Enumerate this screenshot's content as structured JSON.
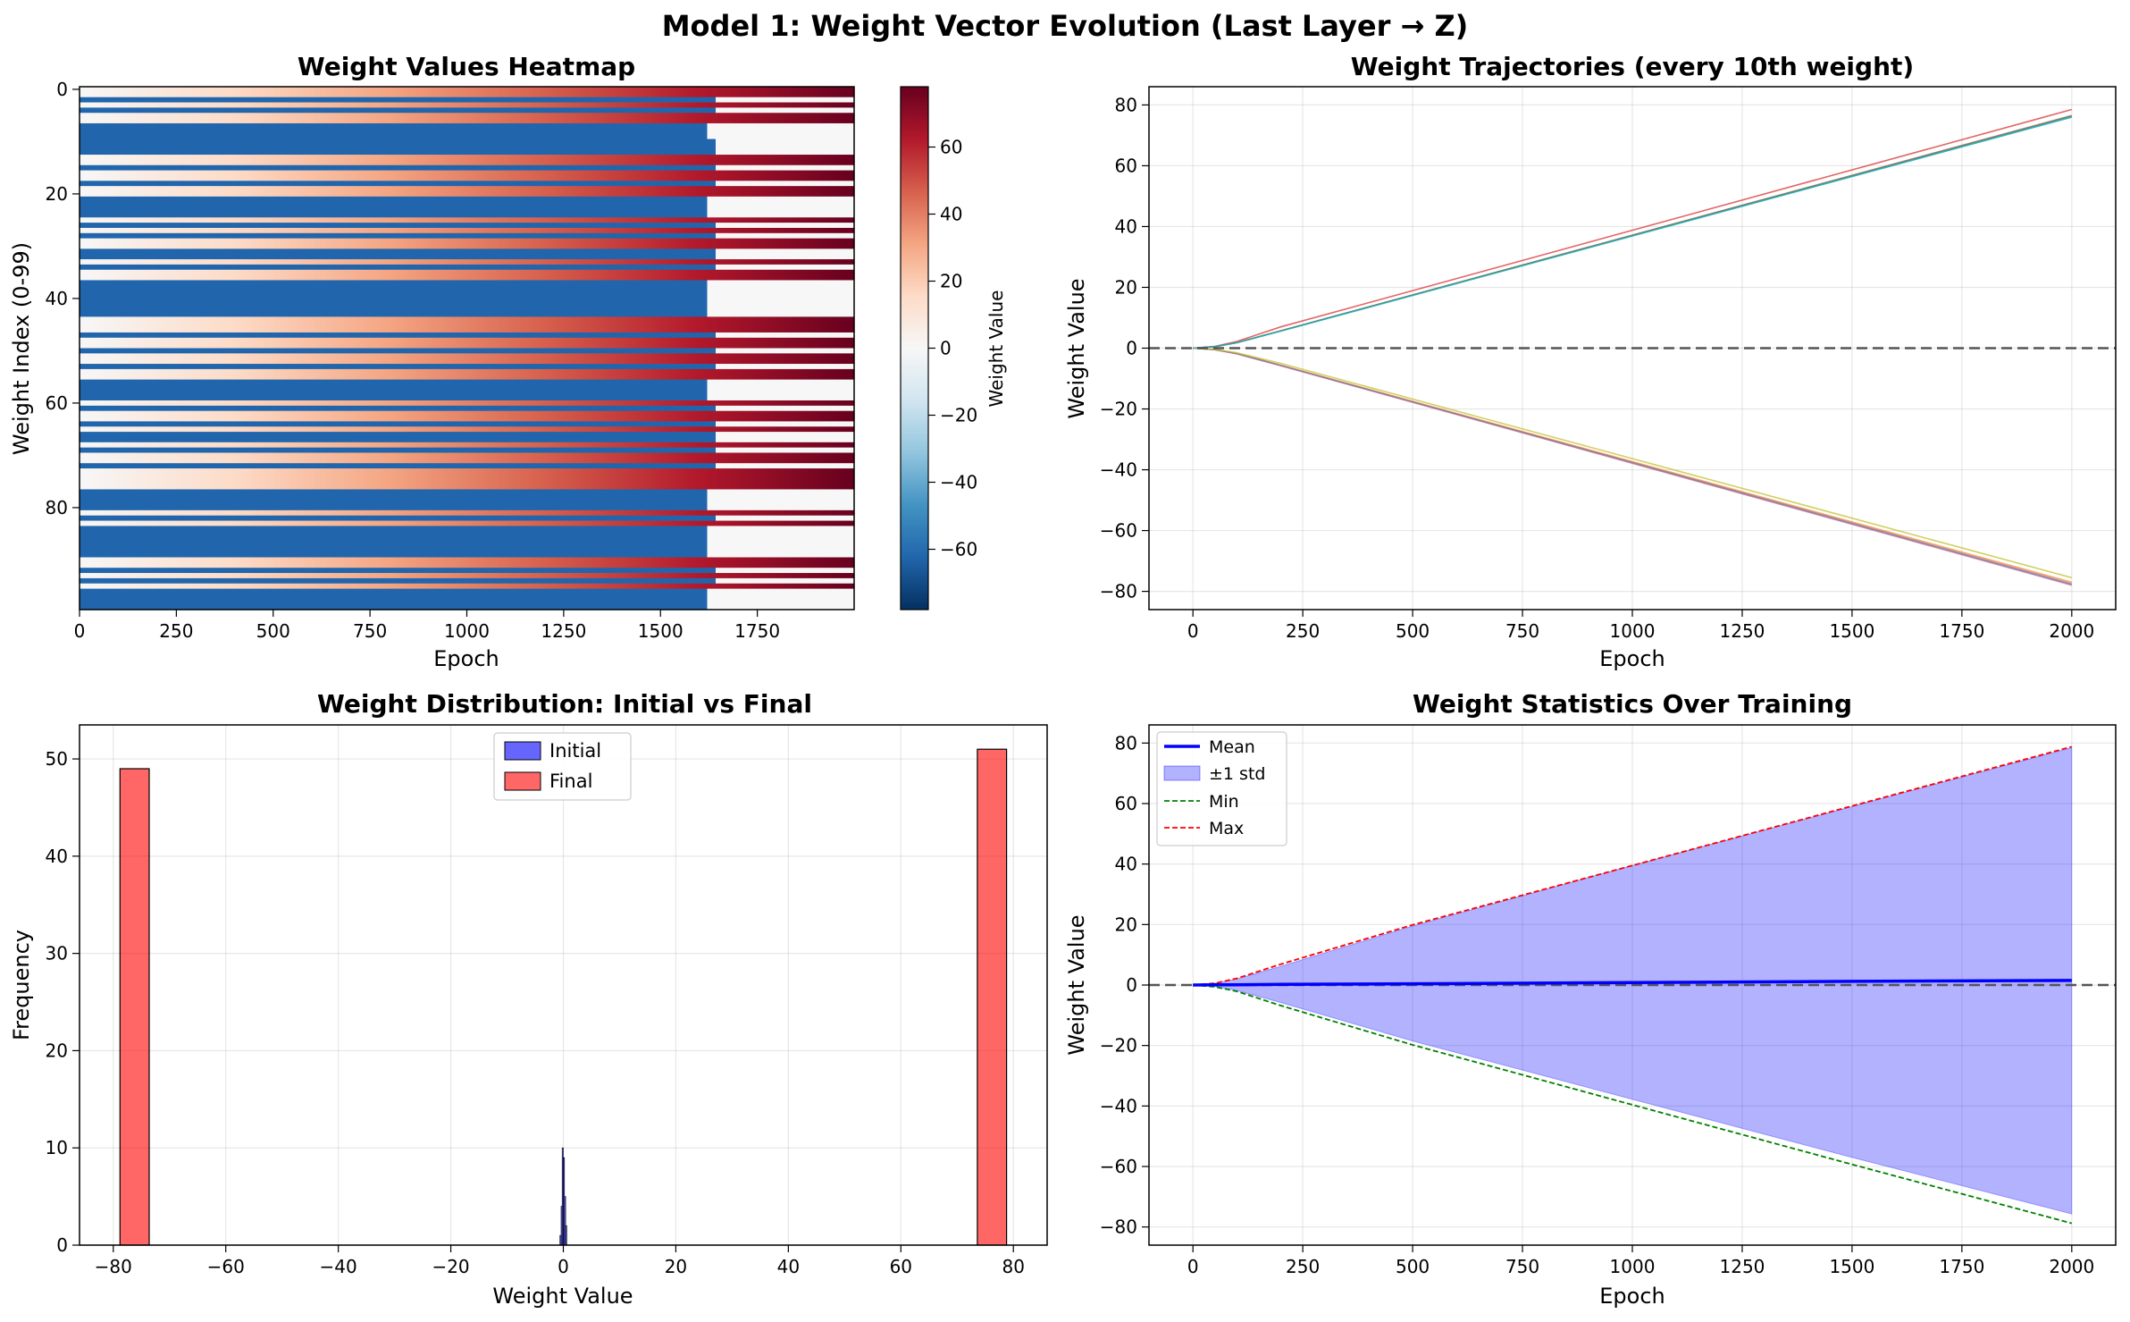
{
  "figure": {
    "suptitle": "Model 1: Weight Vector Evolution (Last Layer → Z)"
  },
  "chart_data": [
    {
      "type": "heatmap",
      "title": "Weight Values Heatmap",
      "xlabel": "Epoch",
      "ylabel": "Weight Index (0-99)",
      "xlim": [
        0,
        2000
      ],
      "ylim": [
        99.5,
        -0.5
      ],
      "x_ticks": [
        0,
        250,
        500,
        750,
        1000,
        1250,
        1500,
        1750
      ],
      "y_ticks": [
        0,
        20,
        40,
        60,
        80
      ],
      "colormap": "RdBu_r",
      "colorbar": {
        "label": "Weight Value",
        "range": [
          -78,
          78
        ],
        "ticks": [
          -60,
          -40,
          -20,
          0,
          20,
          40,
          60
        ]
      },
      "rows": 100,
      "final_values_by_index_range": [
        {
          "from": 0,
          "to": 1,
          "final": 78
        },
        {
          "from": 2,
          "to": 2,
          "final": -76
        },
        {
          "from": 3,
          "to": 3,
          "final": 78
        },
        {
          "from": 4,
          "to": 4,
          "final": -76
        },
        {
          "from": 5,
          "to": 6,
          "final": 78
        },
        {
          "from": 7,
          "to": 9,
          "final": -77
        },
        {
          "from": 10,
          "to": 12,
          "final": -76
        },
        {
          "from": 13,
          "to": 14,
          "final": 78
        },
        {
          "from": 15,
          "to": 15,
          "final": -76
        },
        {
          "from": 16,
          "to": 17,
          "final": 78
        },
        {
          "from": 18,
          "to": 18,
          "final": -76
        },
        {
          "from": 19,
          "to": 20,
          "final": 78
        },
        {
          "from": 21,
          "to": 24,
          "final": -77
        },
        {
          "from": 25,
          "to": 25,
          "final": 78
        },
        {
          "from": 26,
          "to": 26,
          "final": -76
        },
        {
          "from": 27,
          "to": 27,
          "final": 78
        },
        {
          "from": 28,
          "to": 28,
          "final": -76
        },
        {
          "from": 29,
          "to": 30,
          "final": 78
        },
        {
          "from": 31,
          "to": 32,
          "final": -76
        },
        {
          "from": 33,
          "to": 33,
          "final": 78
        },
        {
          "from": 34,
          "to": 34,
          "final": -76
        },
        {
          "from": 35,
          "to": 36,
          "final": 78
        },
        {
          "from": 37,
          "to": 43,
          "final": -77
        },
        {
          "from": 44,
          "to": 46,
          "final": 78
        },
        {
          "from": 47,
          "to": 47,
          "final": -76
        },
        {
          "from": 48,
          "to": 49,
          "final": 78
        },
        {
          "from": 50,
          "to": 50,
          "final": -76
        },
        {
          "from": 51,
          "to": 52,
          "final": 78
        },
        {
          "from": 53,
          "to": 53,
          "final": -76
        },
        {
          "from": 54,
          "to": 55,
          "final": 78
        },
        {
          "from": 56,
          "to": 59,
          "final": -77
        },
        {
          "from": 60,
          "to": 60,
          "final": 78
        },
        {
          "from": 61,
          "to": 61,
          "final": -76
        },
        {
          "from": 62,
          "to": 63,
          "final": 78
        },
        {
          "from": 64,
          "to": 64,
          "final": -76
        },
        {
          "from": 65,
          "to": 65,
          "final": 78
        },
        {
          "from": 66,
          "to": 67,
          "final": -76
        },
        {
          "from": 68,
          "to": 68,
          "final": 78
        },
        {
          "from": 69,
          "to": 69,
          "final": -76
        },
        {
          "from": 70,
          "to": 71,
          "final": 78
        },
        {
          "from": 72,
          "to": 72,
          "final": -76
        },
        {
          "from": 73,
          "to": 76,
          "final": 78
        },
        {
          "from": 77,
          "to": 80,
          "final": -77
        },
        {
          "from": 81,
          "to": 81,
          "final": 78
        },
        {
          "from": 82,
          "to": 82,
          "final": -76
        },
        {
          "from": 83,
          "to": 83,
          "final": 78
        },
        {
          "from": 84,
          "to": 89,
          "final": -77
        },
        {
          "from": 90,
          "to": 91,
          "final": 78
        },
        {
          "from": 92,
          "to": 92,
          "final": -76
        },
        {
          "from": 93,
          "to": 93,
          "final": 78
        },
        {
          "from": 94,
          "to": 94,
          "final": -76
        },
        {
          "from": 95,
          "to": 95,
          "final": 78
        },
        {
          "from": 96,
          "to": 99,
          "final": -77
        }
      ]
    },
    {
      "type": "line",
      "title": "Weight Trajectories (every 10th weight)",
      "xlabel": "Epoch",
      "ylabel": "Weight Value",
      "xlim": [
        -100,
        2100
      ],
      "ylim": [
        -86,
        86
      ],
      "x_ticks": [
        0,
        250,
        500,
        750,
        1000,
        1250,
        1500,
        1750,
        2000
      ],
      "y_ticks": [
        -80,
        -60,
        -40,
        -20,
        0,
        20,
        40,
        60,
        80
      ],
      "grid": true,
      "zero_line": {
        "y": 0,
        "style": "dashed",
        "color": "#555555"
      },
      "series": [
        {
          "color": "#1f77b4",
          "x": [
            0,
            50,
            100,
            200,
            2000
          ],
          "y": [
            0,
            0.5,
            1.8,
            5.7,
            76
          ]
        },
        {
          "color": "#ff7f0e",
          "x": [
            0,
            50,
            100,
            200,
            2000
          ],
          "y": [
            0,
            -0.5,
            -1.8,
            -5.6,
            -77
          ]
        },
        {
          "color": "#2ca02c",
          "x": [
            0,
            50,
            100,
            200,
            2000
          ],
          "y": [
            0,
            0.5,
            1.8,
            5.7,
            76.3
          ]
        },
        {
          "color": "#d62728",
          "x": [
            0,
            50,
            100,
            200,
            2000
          ],
          "y": [
            0,
            0.6,
            2.2,
            7.0,
            78.5
          ]
        },
        {
          "color": "#9467bd",
          "x": [
            0,
            50,
            100,
            200,
            2000
          ],
          "y": [
            0,
            -0.5,
            -1.8,
            -5.7,
            -77.5
          ]
        },
        {
          "color": "#8c564b",
          "x": [
            0,
            50,
            100,
            200,
            2000
          ],
          "y": [
            0,
            0.5,
            1.8,
            5.7,
            76.5
          ]
        },
        {
          "color": "#e377c2",
          "x": [
            0,
            50,
            100,
            200,
            2000
          ],
          "y": [
            0,
            -0.5,
            -1.9,
            -5.8,
            -78
          ]
        },
        {
          "color": "#7f7f7f",
          "x": [
            0,
            50,
            100,
            200,
            2000
          ],
          "y": [
            0,
            -0.5,
            -1.8,
            -5.7,
            -77.8
          ]
        },
        {
          "color": "#bcbd22",
          "x": [
            0,
            50,
            100,
            200,
            2000
          ],
          "y": [
            0,
            -0.4,
            -1.5,
            -5.0,
            -75.5
          ]
        },
        {
          "color": "#17becf",
          "x": [
            0,
            50,
            100,
            200,
            2000
          ],
          "y": [
            0,
            0.5,
            1.8,
            5.6,
            76
          ]
        }
      ]
    },
    {
      "type": "bar",
      "title": "Weight Distribution: Initial vs Final",
      "xlabel": "Weight Value",
      "ylabel": "Frequency",
      "xlim": [
        -86,
        86
      ],
      "ylim": [
        0,
        53.5
      ],
      "x_ticks": [
        -80,
        -60,
        -40,
        -20,
        0,
        20,
        40,
        60,
        80
      ],
      "y_ticks": [
        0,
        10,
        20,
        30,
        40,
        50
      ],
      "grid": true,
      "legend": {
        "placement": "top-center",
        "entries": [
          "Initial",
          "Final"
        ]
      },
      "series": [
        {
          "name": "Initial",
          "color": "#0000ff",
          "bins": [
            [
              -0.6,
              -0.4,
              1
            ],
            [
              -0.4,
              -0.2,
              4
            ],
            [
              -0.2,
              0,
              10
            ],
            [
              0,
              0.2,
              9
            ],
            [
              0.2,
              0.4,
              5
            ],
            [
              0.4,
              0.6,
              2
            ]
          ]
        },
        {
          "name": "Final",
          "color": "#ff0000",
          "bins": [
            [
              -78.8,
              -73.6,
              49
            ],
            [
              73.6,
              78.8,
              51
            ]
          ]
        }
      ]
    },
    {
      "type": "area",
      "title": "Weight Statistics Over Training",
      "xlabel": "Epoch",
      "ylabel": "Weight Value",
      "xlim": [
        -100,
        2100
      ],
      "ylim": [
        -86,
        86
      ],
      "x_ticks": [
        0,
        250,
        500,
        750,
        1000,
        1250,
        1500,
        1750,
        2000
      ],
      "y_ticks": [
        -80,
        -60,
        -40,
        -20,
        0,
        20,
        40,
        60,
        80
      ],
      "grid": true,
      "legend": {
        "placement": "top-left",
        "entries": [
          "Mean",
          "±1 std",
          "Min",
          "Max"
        ]
      },
      "zero_line": {
        "y": 0,
        "style": "dashed",
        "color": "#555555"
      },
      "x": [
        0,
        50,
        100,
        200,
        500,
        1000,
        1500,
        2000
      ],
      "series": [
        {
          "name": "Mean",
          "color": "#0000ff",
          "y": [
            0,
            0.05,
            0.1,
            0.2,
            0.4,
            0.8,
            1.2,
            1.5
          ]
        },
        {
          "name": "±1 std",
          "color": "#0000ff",
          "upper": [
            0,
            0.6,
            2.0,
            6.2,
            19.5,
            39.5,
            59.0,
            78.5
          ],
          "lower": [
            0,
            -0.5,
            -1.8,
            -5.8,
            -18.5,
            -37.8,
            -57.0,
            -75.7
          ]
        },
        {
          "name": "Min",
          "color": "#008000",
          "y": [
            0,
            -0.6,
            -2.1,
            -6.8,
            -19.8,
            -39.6,
            -59.3,
            -78.8
          ]
        },
        {
          "name": "Max",
          "color": "#ff0000",
          "y": [
            0,
            0.6,
            2.2,
            6.9,
            19.9,
            39.5,
            59.2,
            78.8
          ]
        }
      ]
    }
  ]
}
